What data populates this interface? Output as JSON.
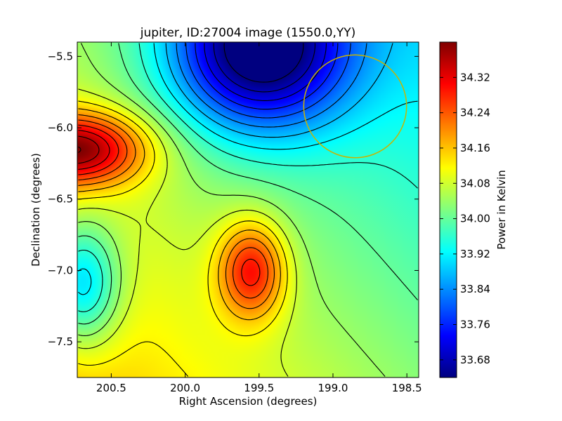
{
  "chart_data": {
    "type": "heatmap",
    "title": "jupiter, ID:27004 image (1550.0,YY)",
    "xlabel": "Right Ascension (degrees)",
    "ylabel": "Declination (degrees)",
    "xlim": [
      200.73,
      198.42
    ],
    "ylim": [
      -7.75,
      -5.4
    ],
    "xticks": [
      200.5,
      200.0,
      199.5,
      199.0,
      198.5
    ],
    "xtick_labels": [
      "200.5",
      "200.0",
      "199.5",
      "199.0",
      "198.5"
    ],
    "yticks": [
      -5.5,
      -6.0,
      -6.5,
      -7.0,
      -7.5
    ],
    "ytick_labels": [
      "−5.5",
      "−6.0",
      "−6.5",
      "−7.0",
      "−7.5"
    ],
    "colormap": "jet",
    "colorbar": {
      "label": "Power in Kelvin",
      "range": [
        33.64,
        34.4
      ],
      "ticks": [
        33.68,
        33.76,
        33.84,
        33.92,
        34.0,
        34.08,
        34.16,
        34.24,
        34.32
      ],
      "tick_labels": [
        "33.68",
        "33.76",
        "33.84",
        "33.92",
        "34.00",
        "34.08",
        "34.16",
        "34.24",
        "34.32"
      ]
    },
    "contours": {
      "color": "#000000",
      "levels_step": 0.04
    },
    "features": [
      {
        "kind": "maximum",
        "ra": 200.73,
        "dec": -6.15,
        "value": 34.38
      },
      {
        "kind": "maximum",
        "ra": 199.55,
        "dec": -7.0,
        "value": 34.3
      },
      {
        "kind": "minimum",
        "ra": 199.5,
        "dec": -5.45,
        "value": 33.65
      },
      {
        "kind": "minimum",
        "ra": 200.7,
        "dec": -7.1,
        "value": 33.84
      }
    ],
    "circle": {
      "ra": 198.85,
      "dec": -5.85,
      "radius_deg": 0.36,
      "color": "#c8b400"
    },
    "grid": false,
    "legend": "none"
  }
}
